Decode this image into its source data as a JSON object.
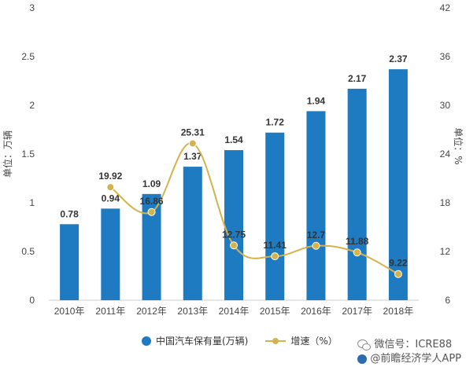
{
  "chart_data": {
    "type": "bar+line",
    "categories": [
      "2010年",
      "2011年",
      "2012年",
      "2013年",
      "2014年",
      "2015年",
      "2016年",
      "2017年",
      "2018年"
    ],
    "series": [
      {
        "name": "中国汽车保有量(万辆)",
        "type": "bar",
        "axis": "left",
        "color": "#1f7bc1",
        "values": [
          0.78,
          0.94,
          1.09,
          1.37,
          1.54,
          1.72,
          1.94,
          2.17,
          2.37
        ],
        "labels": [
          "0.78",
          "0.94",
          "1.09",
          "1.37",
          "1.54",
          "1.72",
          "1.94",
          "2.17",
          "2.37"
        ]
      },
      {
        "name": "增速（%）",
        "type": "line",
        "axis": "right",
        "color": "#d4b24c",
        "values": [
          null,
          19.92,
          16.86,
          25.31,
          12.75,
          11.41,
          12.7,
          11.88,
          9.22
        ],
        "labels": [
          "",
          "19.92",
          "16.86",
          "25.31",
          "12.75",
          "11.41",
          "12.7",
          "11.88",
          "9.22"
        ]
      }
    ],
    "ylabel": "单位：万辆",
    "y2label": "单位：%",
    "ylim": [
      0,
      3
    ],
    "y2lim": [
      6,
      42
    ],
    "yticks": [
      "0",
      "0.5",
      "1",
      "1.5",
      "2",
      "2.5",
      "3"
    ],
    "y2ticks": [
      "6",
      "12",
      "18",
      "24",
      "30",
      "36",
      "42"
    ],
    "grid": false,
    "legend_position": "bottom"
  },
  "legend": {
    "bar_label": "中国汽车保有量(万辆)",
    "line_label": "增速（%）"
  },
  "watermark": {
    "wechat": "微信号：ICRE88",
    "app": "@前瞻经济学人APP"
  }
}
